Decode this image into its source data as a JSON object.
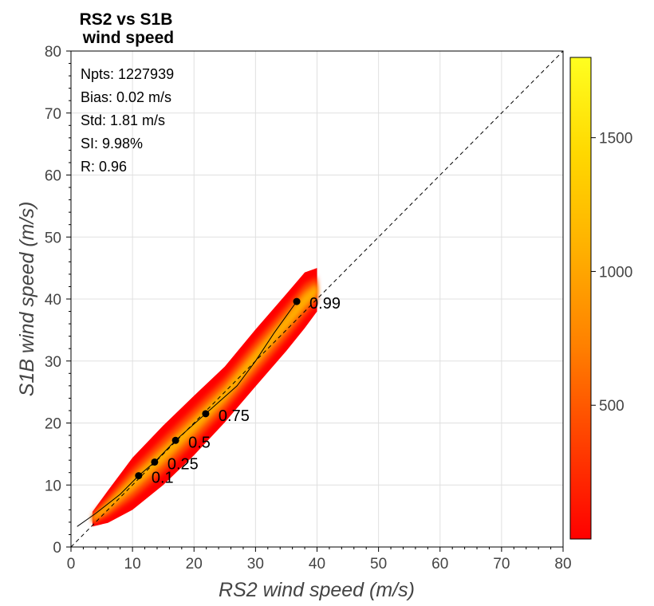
{
  "chart_data": {
    "type": "scatter",
    "subtype": "2d-density-scatter",
    "title_lines": [
      "RS2 vs S1B",
      " wind speed"
    ],
    "xlabel": "RS2 wind speed (m/s)",
    "ylabel": "S1B wind speed (m/s)",
    "xlim": [
      0,
      80
    ],
    "ylim": [
      0,
      80
    ],
    "xticks": [
      0,
      10,
      20,
      30,
      40,
      50,
      60,
      70,
      80
    ],
    "yticks": [
      0,
      10,
      20,
      30,
      40,
      50,
      60,
      70,
      80
    ],
    "grid": true,
    "stats": [
      "Npts: 1227939",
      "Bias: 0.02 m/s",
      "Std: 1.81 m/s",
      "SI: 9.98%",
      "R: 0.96"
    ],
    "reference_line": {
      "style": "dashed",
      "x": [
        0,
        80
      ],
      "y": [
        0,
        80
      ]
    },
    "quantiles": [
      {
        "label": "0.1",
        "x": 11.0,
        "y": 11.5
      },
      {
        "label": "0.25",
        "x": 13.6,
        "y": 13.7
      },
      {
        "label": "0.5",
        "x": 17.0,
        "y": 17.2
      },
      {
        "label": "0.75",
        "x": 21.9,
        "y": 21.5
      },
      {
        "label": "0.99",
        "x": 36.7,
        "y": 39.6
      }
    ],
    "quantile_line": {
      "x": [
        1,
        4,
        8,
        11,
        13.6,
        17,
        21.9,
        27,
        30,
        33,
        36.7
      ],
      "y": [
        3.3,
        5.4,
        8.5,
        11.5,
        13.7,
        17.2,
        21.5,
        26,
        30,
        34.5,
        39.6
      ]
    },
    "density_band": {
      "x": [
        3.5,
        6,
        10,
        15,
        20,
        25,
        30,
        35,
        38,
        40
      ],
      "center": [
        4.5,
        6.5,
        10.2,
        14.8,
        19.6,
        24.6,
        30.5,
        36.2,
        39.8,
        41.5
      ],
      "halfwidth": [
        1.2,
        2.6,
        4.2,
        4.8,
        4.8,
        4.5,
        4.6,
        4.6,
        4.5,
        3.5
      ]
    },
    "colorbar": {
      "ticks": [
        500,
        1000,
        1500
      ],
      "range": [
        0,
        1800
      ],
      "colors": [
        "#ff0000",
        "#ff4000",
        "#ff8000",
        "#ffb000",
        "#ffd800",
        "#ffff20"
      ]
    }
  }
}
